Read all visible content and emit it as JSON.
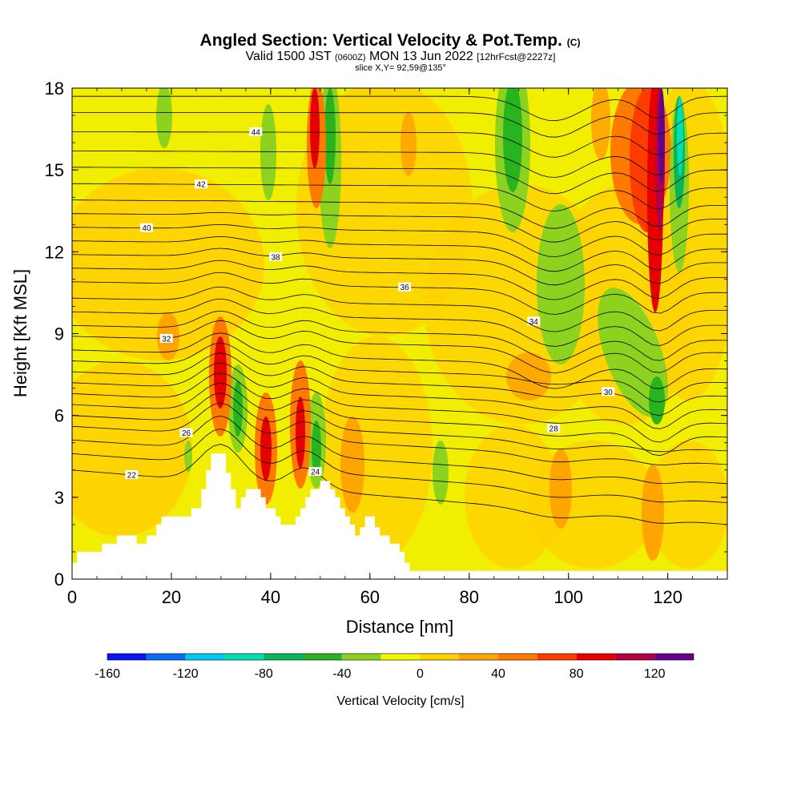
{
  "title": {
    "main": "Angled Section: Vertical Velocity & Pot.Temp.",
    "main_suffix": "(C)",
    "sub_a": "Valid 1500 JST",
    "sub_b": "(0600Z)",
    "sub_c": "MON 13 Jun 2022",
    "sub_d": "[12hrFcst@2227z]",
    "slice": "slice X,Y= 92,59@135°"
  },
  "chart_data": {
    "type": "heatmap",
    "xlabel": "Distance [nm]",
    "ylabel": "Height [Kft MSL]",
    "xlim": [
      0,
      132
    ],
    "ylim": [
      0,
      18
    ],
    "x_ticks": [
      0,
      20,
      40,
      60,
      80,
      100,
      120
    ],
    "y_ticks": [
      0,
      3,
      6,
      9,
      12,
      15,
      18
    ],
    "grid": false,
    "colorbar": {
      "label": "Vertical Velocity [cm/s]",
      "placement": "bottom",
      "levels": [
        -160,
        -140,
        -120,
        -100,
        -80,
        -60,
        -40,
        -20,
        0,
        20,
        40,
        60,
        80,
        100,
        120,
        140
      ],
      "tick_labels": [
        "-160",
        "-120",
        "-80",
        "-40",
        "0",
        "40",
        "80",
        "120"
      ],
      "tick_values": [
        -160,
        -120,
        -80,
        -40,
        0,
        40,
        80,
        120
      ],
      "colors": [
        "#0a14f0",
        "#0a6cf0",
        "#00c8f0",
        "#00e0b4",
        "#0ab45a",
        "#28b41e",
        "#8cd21e",
        "#f5f500",
        "#ffd200",
        "#ffa500",
        "#ff7a00",
        "#ff3c00",
        "#e60000",
        "#b40046",
        "#64008c"
      ]
    },
    "terrain": [
      [
        0,
        0.6
      ],
      [
        1,
        0.6
      ],
      [
        1,
        1.0
      ],
      [
        6,
        1.0
      ],
      [
        6,
        1.3
      ],
      [
        9,
        1.3
      ],
      [
        9,
        1.6
      ],
      [
        13,
        1.6
      ],
      [
        13,
        1.3
      ],
      [
        15,
        1.3
      ],
      [
        15,
        1.6
      ],
      [
        17,
        1.6
      ],
      [
        17,
        2.0
      ],
      [
        18,
        2.0
      ],
      [
        18,
        2.3
      ],
      [
        24,
        2.3
      ],
      [
        24,
        2.6
      ],
      [
        26,
        2.6
      ],
      [
        26,
        3.3
      ],
      [
        27,
        3.3
      ],
      [
        27,
        4.0
      ],
      [
        28,
        4.0
      ],
      [
        28,
        4.6
      ],
      [
        31,
        4.6
      ],
      [
        31,
        3.9
      ],
      [
        32,
        3.9
      ],
      [
        32,
        3.3
      ],
      [
        33,
        3.3
      ],
      [
        33,
        2.6
      ],
      [
        34,
        2.6
      ],
      [
        34,
        3.0
      ],
      [
        35,
        3.0
      ],
      [
        35,
        3.3
      ],
      [
        38,
        3.3
      ],
      [
        38,
        3.0
      ],
      [
        39,
        3.0
      ],
      [
        39,
        2.6
      ],
      [
        41,
        2.6
      ],
      [
        41,
        2.3
      ],
      [
        42,
        2.3
      ],
      [
        42,
        2.0
      ],
      [
        45,
        2.0
      ],
      [
        45,
        2.3
      ],
      [
        46,
        2.3
      ],
      [
        46,
        2.6
      ],
      [
        47,
        2.6
      ],
      [
        47,
        3.0
      ],
      [
        48,
        3.0
      ],
      [
        48,
        3.3
      ],
      [
        50,
        3.3
      ],
      [
        50,
        3.6
      ],
      [
        52,
        3.6
      ],
      [
        52,
        3.3
      ],
      [
        53,
        3.3
      ],
      [
        53,
        3.0
      ],
      [
        54,
        3.0
      ],
      [
        54,
        2.6
      ],
      [
        55,
        2.6
      ],
      [
        55,
        2.3
      ],
      [
        56,
        2.3
      ],
      [
        56,
        2.0
      ],
      [
        57,
        2.0
      ],
      [
        57,
        1.6
      ],
      [
        58,
        1.6
      ],
      [
        58,
        1.9
      ],
      [
        59,
        1.9
      ],
      [
        59,
        2.3
      ],
      [
        61,
        2.3
      ],
      [
        61,
        1.9
      ],
      [
        62,
        1.9
      ],
      [
        62,
        1.6
      ],
      [
        64,
        1.6
      ],
      [
        64,
        1.3
      ],
      [
        66,
        1.3
      ],
      [
        66,
        1.0
      ],
      [
        67,
        1.0
      ],
      [
        67,
        0.6
      ],
      [
        68,
        0.6
      ],
      [
        68,
        0.3
      ],
      [
        132,
        0.3
      ]
    ],
    "isentropes": [
      {
        "label": "22",
        "y0": 4.0,
        "a": -2.0
      },
      {
        "label": "24",
        "y0": 4.6,
        "a": -1.8
      },
      {
        "label": "",
        "y0": 5.1,
        "a": -1.6
      },
      {
        "label": "26",
        "y0": 5.6,
        "a": -1.4
      },
      {
        "label": "",
        "y0": 6.0,
        "a": -1.3
      },
      {
        "label": "28",
        "y0": 6.4,
        "a": -1.2
      },
      {
        "label": "",
        "y0": 6.8,
        "a": -1.1
      },
      {
        "label": "",
        "y0": 7.2,
        "a": -1.0
      },
      {
        "label": "30",
        "y0": 7.6,
        "a": -0.9
      },
      {
        "label": "",
        "y0": 8.0,
        "a": -0.8
      },
      {
        "label": "",
        "y0": 8.4,
        "a": -0.7
      },
      {
        "label": "32",
        "y0": 8.9,
        "a": -0.6
      },
      {
        "label": "",
        "y0": 9.3,
        "a": -0.55
      },
      {
        "label": "34",
        "y0": 9.8,
        "a": -0.5
      },
      {
        "label": "",
        "y0": 10.3,
        "a": -0.45
      },
      {
        "label": "36",
        "y0": 10.9,
        "a": -0.4
      },
      {
        "label": "",
        "y0": 11.4,
        "a": -0.35
      },
      {
        "label": "38",
        "y0": 11.9,
        "a": -0.3
      },
      {
        "label": "",
        "y0": 12.4,
        "a": -0.3
      },
      {
        "label": "40",
        "y0": 12.9,
        "a": -0.25
      },
      {
        "label": "",
        "y0": 13.4,
        "a": -0.2
      },
      {
        "label": "",
        "y0": 13.9,
        "a": -0.2
      },
      {
        "label": "42",
        "y0": 14.5,
        "a": -0.15
      },
      {
        "label": "",
        "y0": 15.1,
        "a": -0.1
      },
      {
        "label": "",
        "y0": 15.7,
        "a": -0.1
      },
      {
        "label": "44",
        "y0": 16.4,
        "a": -0.05
      },
      {
        "label": "",
        "y0": 17.1,
        "a": 0
      },
      {
        "label": "",
        "y0": 17.7,
        "a": 0
      }
    ]
  }
}
